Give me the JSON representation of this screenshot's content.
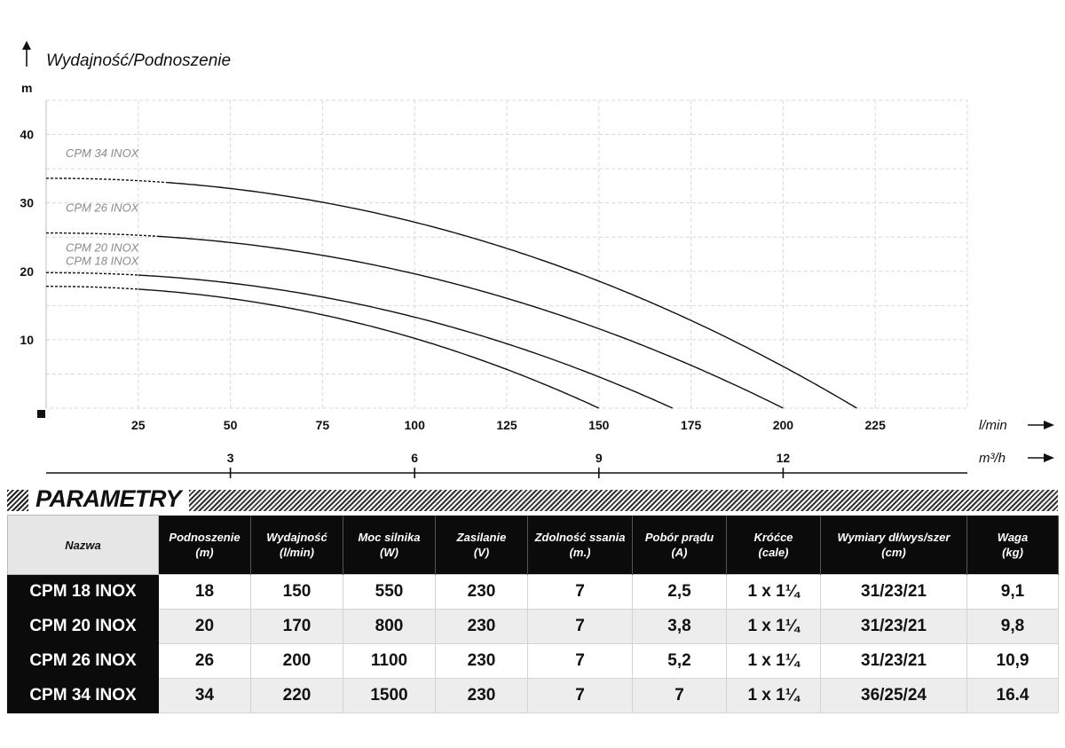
{
  "chart_data": {
    "type": "line",
    "ylabel": "Wydajność/Podnoszenie",
    "yunit": "m",
    "xunit": "l/min",
    "x2unit": "m³/h",
    "ylim": [
      0,
      45
    ],
    "xlim": [
      0,
      250
    ],
    "yticks": [
      10,
      20,
      30,
      40
    ],
    "xticks": [
      25,
      50,
      75,
      100,
      125,
      150,
      175,
      200,
      225
    ],
    "x2ticks": [
      3,
      6,
      9,
      12
    ],
    "grid": true,
    "series": [
      {
        "name": "CPM 34 INOX",
        "shutoff": 33.6,
        "max_flow": 220,
        "dashed_to": 33
      },
      {
        "name": "CPM 26 INOX",
        "shutoff": 25.6,
        "max_flow": 200,
        "dashed_to": 30
      },
      {
        "name": "CPM 20 INOX",
        "shutoff": 19.8,
        "max_flow": 170,
        "dashed_to": 25
      },
      {
        "name": "CPM 18 INOX",
        "shutoff": 17.8,
        "max_flow": 150,
        "dashed_to": 25
      }
    ]
  },
  "section_title": "PARAMETRY",
  "table": {
    "headers": [
      {
        "l1": "Nazwa",
        "l2": ""
      },
      {
        "l1": "Podnoszenie",
        "l2": "(m)"
      },
      {
        "l1": "Wydajność",
        "l2": "(l/min)"
      },
      {
        "l1": "Moc silnika",
        "l2": "(W)"
      },
      {
        "l1": "Zasilanie",
        "l2": "(V)"
      },
      {
        "l1": "Zdolność ssania",
        "l2": "(m.)"
      },
      {
        "l1": "Pobór prądu",
        "l2": "(A)"
      },
      {
        "l1": "Króćce",
        "l2": "(cale)"
      },
      {
        "l1": "Wymiary dł/wys/szer",
        "l2": "(cm)"
      },
      {
        "l1": "Waga",
        "l2": "(kg)"
      }
    ],
    "rows": [
      [
        "CPM 18 INOX",
        "18",
        "150",
        "550",
        "230",
        "7",
        "2,5",
        "1 x 1¼",
        "31/23/21",
        "9,1"
      ],
      [
        "CPM 20 INOX",
        "20",
        "170",
        "800",
        "230",
        "7",
        "3,8",
        "1 x 1¼",
        "31/23/21",
        "9,8"
      ],
      [
        "CPM 26 INOX",
        "26",
        "200",
        "1100",
        "230",
        "7",
        "5,2",
        "1 x 1¼",
        "31/23/21",
        "10,9"
      ],
      [
        "CPM 34 INOX",
        "34",
        "220",
        "1500",
        "230",
        "7",
        "7",
        "1 x 1¼",
        "36/25/24",
        "16.4"
      ]
    ]
  }
}
